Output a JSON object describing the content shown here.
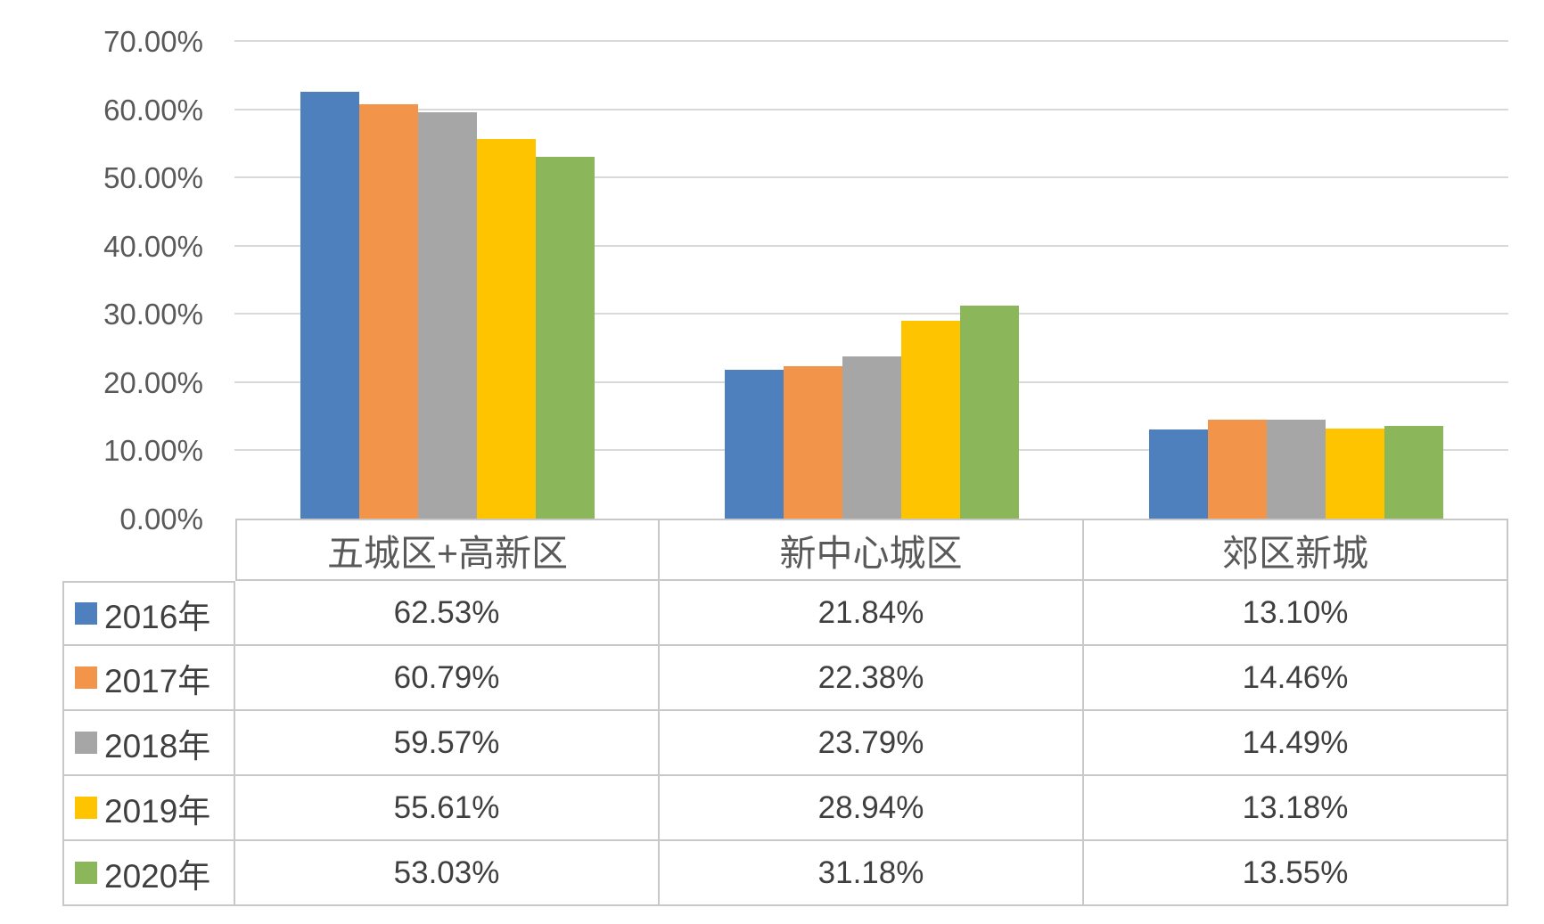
{
  "chart_data": {
    "type": "bar",
    "title": "",
    "categories": [
      "五城区+高新区",
      "新中心城区",
      "郊区新城"
    ],
    "series": [
      {
        "name": "2016年",
        "color": "#4e80be",
        "values": [
          62.53,
          21.84,
          13.1
        ]
      },
      {
        "name": "2017年",
        "color": "#f2954a",
        "values": [
          60.79,
          22.38,
          14.46
        ]
      },
      {
        "name": "2018年",
        "color": "#a6a6a6",
        "values": [
          59.57,
          23.79,
          14.49
        ]
      },
      {
        "name": "2019年",
        "color": "#ffc400",
        "values": [
          55.61,
          28.94,
          13.18
        ]
      },
      {
        "name": "2020年",
        "color": "#8bb75a",
        "values": [
          53.03,
          31.18,
          13.55
        ]
      }
    ],
    "ylim": [
      0,
      70
    ],
    "ytick_step": 10,
    "ytick_labels": [
      "70.00%",
      "60.00%",
      "50.00%",
      "40.00%",
      "30.00%",
      "20.00%",
      "10.00%",
      "0.00%"
    ],
    "value_format": "0.00%",
    "grid": true,
    "legend_position": "data-table-left-column",
    "data_table_shown": true
  },
  "colors": {
    "background": "#ffffff",
    "gridline": "#d9d9d9",
    "table_border": "#c8c8c8",
    "axis_tick_text": "#595959",
    "table_header_text": "#595959",
    "table_value_text": "#3f3f3f"
  }
}
